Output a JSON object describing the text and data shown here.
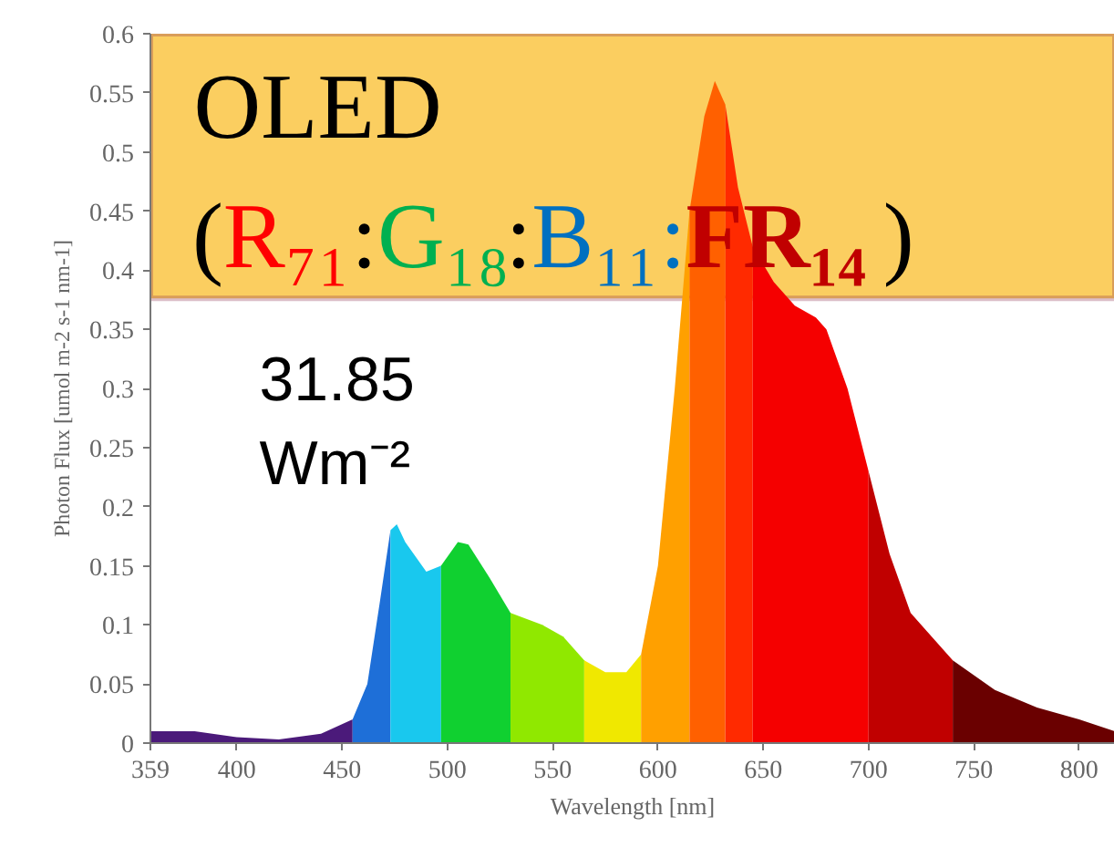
{
  "chart_data": {
    "type": "area",
    "xlabel": "Wavelength [nm]",
    "ylabel": "Photon Flux [umol m-2 s-1 nm-1]",
    "annotations": [
      "OLED",
      "(R₇₁:G₁₈:B₁₁:FR₁₄)",
      "31.85\nWm⁻²"
    ],
    "xlim": [
      359,
      817
    ],
    "xticks": [
      359,
      400,
      450,
      500,
      550,
      600,
      650,
      700,
      750,
      800
    ],
    "ylim": [
      0,
      0.6
    ],
    "yticks": [
      0,
      0.05,
      0.1,
      0.15,
      0.2,
      0.25,
      0.3,
      0.35,
      0.4,
      0.45,
      0.5,
      0.55,
      0.6
    ],
    "series": [
      {
        "color": "#4b1a7a",
        "x": [
          359,
          380,
          400,
          420,
          440,
          455
        ],
        "values": [
          0.01,
          0.01,
          0.005,
          0.003,
          0.008,
          0.02
        ]
      },
      {
        "color": "#1e6fd8",
        "x": [
          455,
          462,
          468,
          473
        ],
        "values": [
          0.02,
          0.05,
          0.12,
          0.18
        ]
      },
      {
        "color": "#19c8ee",
        "x": [
          473,
          476,
          480,
          490,
          497
        ],
        "values": [
          0.18,
          0.185,
          0.17,
          0.145,
          0.15
        ]
      },
      {
        "color": "#10d030",
        "x": [
          497,
          505,
          510,
          520,
          530
        ],
        "values": [
          0.15,
          0.17,
          0.168,
          0.14,
          0.11
        ]
      },
      {
        "color": "#90e800",
        "x": [
          530,
          545,
          555,
          565
        ],
        "values": [
          0.11,
          0.1,
          0.09,
          0.07
        ]
      },
      {
        "color": "#f0e800",
        "x": [
          565,
          575,
          585,
          592
        ],
        "values": [
          0.07,
          0.06,
          0.06,
          0.075
        ]
      },
      {
        "color": "#ffa000",
        "x": [
          592,
          600,
          608,
          615
        ],
        "values": [
          0.075,
          0.15,
          0.3,
          0.45
        ]
      },
      {
        "color": "#ff6000",
        "x": [
          615,
          622,
          627,
          632
        ],
        "values": [
          0.45,
          0.53,
          0.56,
          0.54
        ]
      },
      {
        "color": "#ff2a00",
        "x": [
          632,
          638,
          645
        ],
        "values": [
          0.54,
          0.47,
          0.42
        ]
      },
      {
        "color": "#f50000",
        "x": [
          645,
          655,
          665,
          675,
          680,
          690,
          700
        ],
        "values": [
          0.42,
          0.39,
          0.37,
          0.36,
          0.35,
          0.3,
          0.23
        ]
      },
      {
        "color": "#c00000",
        "x": [
          700,
          710,
          720,
          740
        ],
        "values": [
          0.23,
          0.16,
          0.11,
          0.07
        ]
      },
      {
        "color": "#6a0000",
        "x": [
          740,
          760,
          780,
          800,
          817
        ],
        "values": [
          0.07,
          0.045,
          0.03,
          0.02,
          0.01
        ]
      }
    ]
  }
}
